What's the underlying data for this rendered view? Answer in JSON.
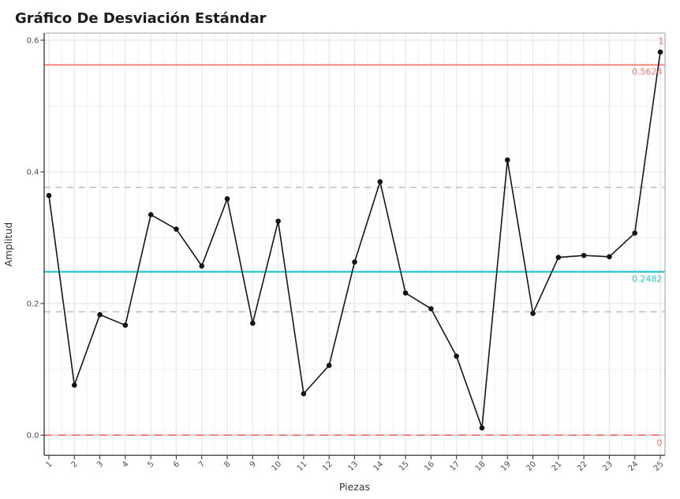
{
  "chart_data": {
    "type": "line",
    "title": "Gráfico De Desviación Estándar",
    "xlabel": "Piezas",
    "ylabel": "Amplitud",
    "x": [
      1,
      2,
      3,
      4,
      5,
      6,
      7,
      8,
      9,
      10,
      11,
      12,
      13,
      14,
      15,
      16,
      17,
      18,
      19,
      20,
      21,
      22,
      23,
      24,
      25
    ],
    "values": [
      0.364,
      0.076,
      0.183,
      0.167,
      0.335,
      0.313,
      0.257,
      0.359,
      0.17,
      0.325,
      0.063,
      0.106,
      0.263,
      0.385,
      0.216,
      0.192,
      0.12,
      0.011,
      0.418,
      0.185,
      0.27,
      0.273,
      0.271,
      0.307,
      0.582
    ],
    "ylim": [
      -0.03,
      0.611
    ],
    "y_ticks": [
      {
        "value": 0.0,
        "label": "0.0"
      },
      {
        "value": 0.2,
        "label": "0.2"
      },
      {
        "value": 0.4,
        "label": "0.4"
      },
      {
        "value": 0.6,
        "label": "0.6"
      }
    ],
    "y_minor": [
      0.1,
      0.3,
      0.5
    ],
    "grid": "major+minor",
    "legend_position": "none",
    "series_color": "#151515",
    "control_lines": [
      {
        "name": "ucl",
        "value": 0.5624,
        "label": "0.5624",
        "style": "solid",
        "color": "#f8766d"
      },
      {
        "name": "cl",
        "value": 0.2482,
        "label": "0.2482",
        "style": "solid",
        "color": "#2bc4ce"
      },
      {
        "name": "lcl",
        "value": 0.0,
        "label": "0",
        "style": "dashed",
        "color": "#f8766d"
      }
    ],
    "zone_lines": {
      "values": [
        0.3764,
        0.1874
      ],
      "style": "dashed",
      "color": "#b9b9b9"
    },
    "violation_labels": [
      {
        "x": 25,
        "value": 0.582,
        "label": "1",
        "color": "#f8766d"
      }
    ],
    "palette": {
      "grid_major": "#e6e6e6",
      "grid_minor": "#f2f2f2",
      "panel_border": "#b5b5b5",
      "axis_line": "#333333",
      "tick_label": "#4d4d4d",
      "zero_underlay": "#c6c6c6"
    }
  }
}
